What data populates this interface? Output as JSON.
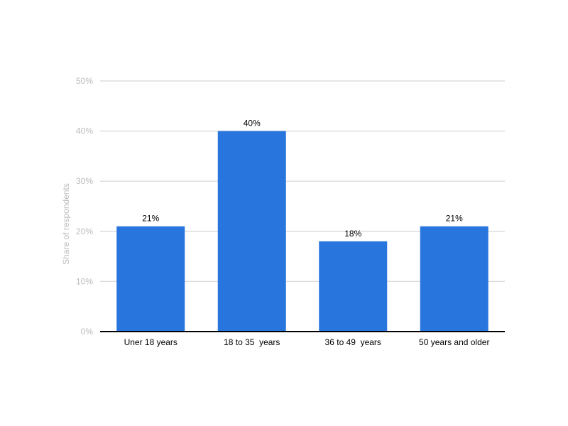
{
  "chart_data": {
    "type": "bar",
    "categories": [
      "Uner 18 years",
      "18 to 35  years",
      "36 to 49  years",
      "50 years and older"
    ],
    "values": [
      21,
      40,
      18,
      21
    ],
    "data_labels": [
      "21%",
      "40%",
      "18%",
      "21%"
    ],
    "ylabel": "Share of respondents",
    "xlabel": "",
    "ylim": [
      0,
      50
    ],
    "yticks": [
      0,
      10,
      20,
      30,
      40,
      50
    ],
    "ytick_labels": [
      "0%",
      "10%",
      "20%",
      "30%",
      "40%",
      "50%"
    ],
    "grid": true,
    "bar_color": "#2876dd",
    "grid_color": "#dddddd",
    "axis_color": "#000000"
  }
}
